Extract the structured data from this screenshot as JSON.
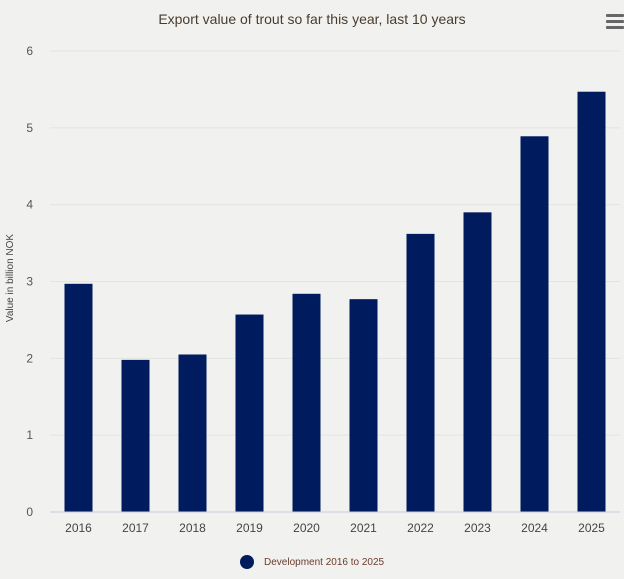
{
  "chart_data": {
    "type": "bar",
    "title": "Export value of trout so far this year, last 10 years",
    "ylabel": "Value in billion NOK",
    "xlabel": "",
    "categories": [
      "2016",
      "2017",
      "2018",
      "2019",
      "2020",
      "2021",
      "2022",
      "2023",
      "2024",
      "2025"
    ],
    "series": [
      {
        "name": "Development 2016 to 2025",
        "values": [
          2.97,
          1.98,
          2.05,
          2.57,
          2.84,
          2.77,
          3.62,
          3.9,
          4.89,
          5.47
        ]
      }
    ],
    "ylim": [
      0,
      6
    ],
    "yticks": [
      0,
      1,
      2,
      3,
      4,
      5,
      6
    ],
    "grid": true,
    "legend_position": "bottom-center",
    "colors": {
      "bar": "#001b5e",
      "grid": "#e2e4e1",
      "axis": "#c9ccd8"
    }
  },
  "toolbar": {
    "menu_icon": "hamburger-menu-icon"
  }
}
